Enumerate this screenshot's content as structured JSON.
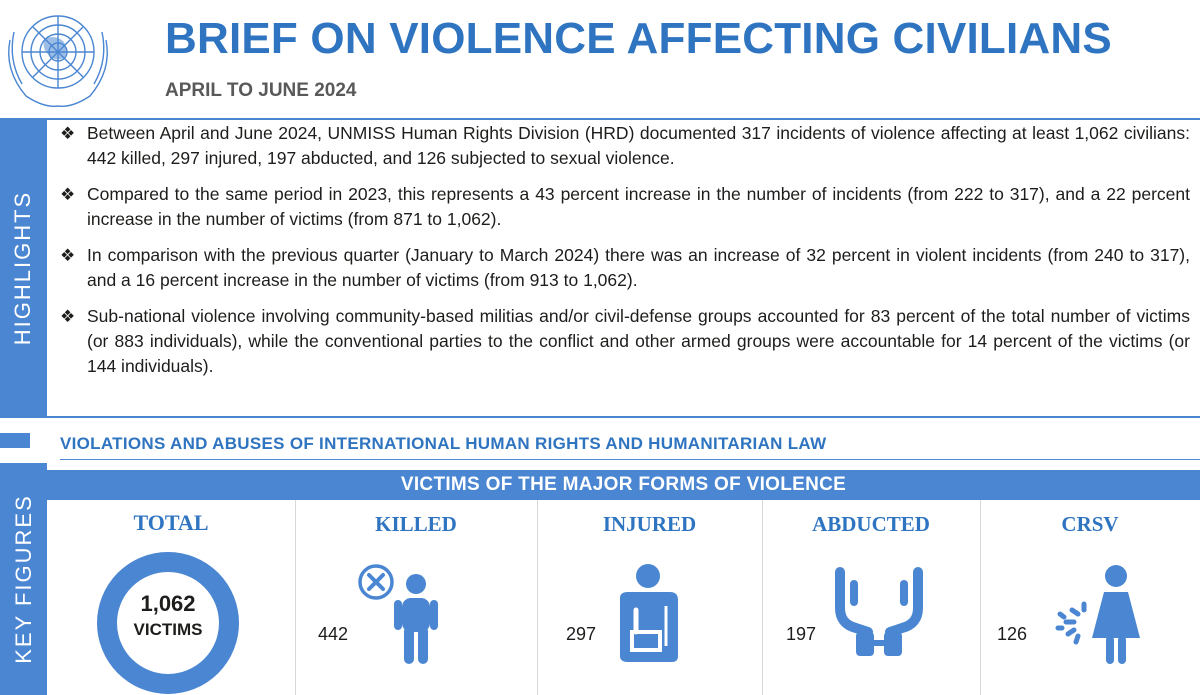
{
  "header": {
    "title": "BRIEF ON VIOLENCE AFFECTING CIVILIANS",
    "subtitle": "APRIL TO JUNE 2024",
    "logo_icon": "un-emblem-icon"
  },
  "highlights": {
    "label": "HIGHLIGHTS",
    "bullet_symbol": "❖",
    "items": [
      "Between April and June 2024, UNMISS Human Rights Division (HRD) documented 317 incidents of violence affecting at least 1,062 civilians: 442 killed, 297 injured, 197 abducted, and 126 subjected to sexual violence.",
      "Compared to the same period in 2023, this represents a 43 percent increase in the number of incidents (from 222 to 317), and a 22 percent increase in the number of victims (from 871 to 1,062).",
      "In comparison with the previous quarter (January to March 2024) there was an increase of 32 percent in violent incidents (from 240 to 317), and a 16 percent increase in the number of victims (from 913 to 1,062).",
      "Sub-national violence involving community-based militias and/or civil-defense groups accounted for 83 percent of the total number of victims (or 883 individuals), while the conventional parties to the conflict and other armed groups were accountable for 14 percent of the victims (or 144 individuals)."
    ]
  },
  "violations": {
    "title": "VIOLATIONS AND ABUSES OF INTERNATIONAL HUMAN RIGHTS AND HUMANITARIAN LAW"
  },
  "key_figures": {
    "label": "KEY FIGURES",
    "header": "VICTIMS OF THE MAJOR FORMS OF VIOLENCE",
    "total": {
      "label": "TOTAL",
      "value": "1,062",
      "unit": "VICTIMS"
    },
    "killed": {
      "label": "KILLED",
      "value": "442",
      "icon": "killed-person-icon"
    },
    "injured": {
      "label": "INJURED",
      "value": "297",
      "icon": "injured-person-icon"
    },
    "abducted": {
      "label": "ABDUCTED",
      "value": "197",
      "icon": "handcuffed-hands-icon"
    },
    "crsv": {
      "label": "CRSV",
      "value": "126",
      "icon": "sexual-violence-icon"
    }
  },
  "colors": {
    "primary_blue": "#2f74c0",
    "band_blue": "#4a86d2",
    "text_dark": "#1d1d1b",
    "subtitle_gray": "#595959"
  }
}
